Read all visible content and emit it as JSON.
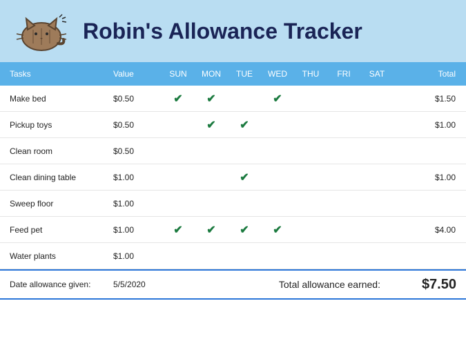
{
  "title": "Robin's Allowance Tracker",
  "colors": {
    "banner_bg": "#b9ddf2",
    "header_bg": "#5ab1e8",
    "header_text": "#ffffff",
    "title_text": "#1a2456",
    "check_color": "#1b7a3f",
    "row_border": "#e5e5e5",
    "footer_border": "#2a75d8"
  },
  "headers": {
    "tasks": "Tasks",
    "value": "Value",
    "days": [
      "SUN",
      "MON",
      "TUE",
      "WED",
      "THU",
      "FRI",
      "SAT"
    ],
    "total": "Total"
  },
  "rows": [
    {
      "task": "Make bed",
      "value": "$0.50",
      "days": [
        true,
        true,
        false,
        true,
        false,
        false,
        false
      ],
      "total": "$1.50"
    },
    {
      "task": "Pickup toys",
      "value": "$0.50",
      "days": [
        false,
        true,
        true,
        false,
        false,
        false,
        false
      ],
      "total": "$1.00"
    },
    {
      "task": "Clean room",
      "value": "$0.50",
      "days": [
        false,
        false,
        false,
        false,
        false,
        false,
        false
      ],
      "total": ""
    },
    {
      "task": "Clean dining table",
      "value": "$1.00",
      "days": [
        false,
        false,
        true,
        false,
        false,
        false,
        false
      ],
      "total": "$1.00"
    },
    {
      "task": "Sweep floor",
      "value": "$1.00",
      "days": [
        false,
        false,
        false,
        false,
        false,
        false,
        false
      ],
      "total": ""
    },
    {
      "task": "Feed pet",
      "value": "$1.00",
      "days": [
        true,
        true,
        true,
        true,
        false,
        false,
        false
      ],
      "total": "$4.00"
    },
    {
      "task": "Water plants",
      "value": "$1.00",
      "days": [
        false,
        false,
        false,
        false,
        false,
        false,
        false
      ],
      "total": ""
    }
  ],
  "footer": {
    "date_label": "Date allowance given:",
    "date_value": "5/5/2020",
    "total_label": "Total allowance earned:",
    "total_value": "$7.50"
  }
}
